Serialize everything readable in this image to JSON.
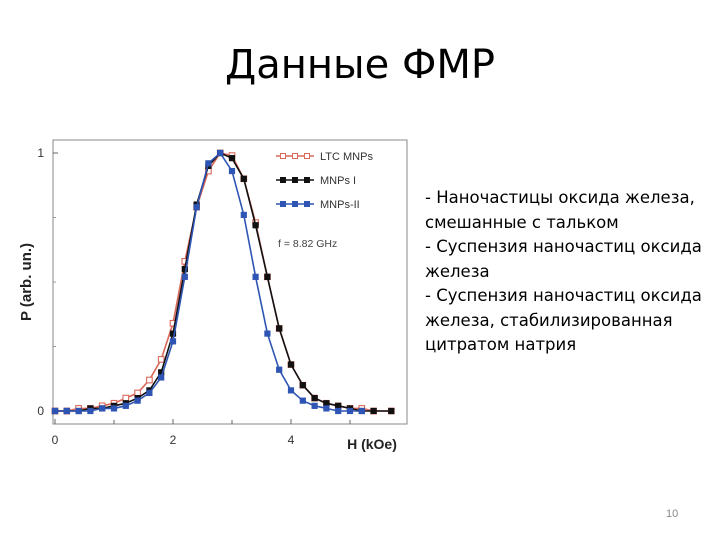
{
  "slide": {
    "title": "Данные ФМР",
    "bullets": [
      "- Наночастицы оксида железа, смешанные с тальком",
      "- Суспензия наночастиц оксида железа",
      "- Суспензия наночастиц оксида железа, стабилизированная цитратом натрия"
    ],
    "page_number": "10"
  },
  "chart_data": {
    "type": "line",
    "title": "",
    "xlabel": "H (kOe)",
    "ylabel": "P (arb. un.)",
    "xlim": [
      0,
      6
    ],
    "ylim": [
      0,
      1
    ],
    "x_ticks": [
      "0",
      "2",
      "4"
    ],
    "y_ticks": [
      "0",
      "1"
    ],
    "annotation": "f = 8.82 GHz",
    "legend_position": "top-right",
    "series": [
      {
        "name": "LTC MNPs",
        "color": "#d9695a",
        "marker": "open-square",
        "points": [
          [
            0,
            0
          ],
          [
            0.2,
            0
          ],
          [
            0.4,
            0.01
          ],
          [
            0.6,
            0.01
          ],
          [
            0.8,
            0.02
          ],
          [
            1.0,
            0.03
          ],
          [
            1.2,
            0.05
          ],
          [
            1.4,
            0.07
          ],
          [
            1.6,
            0.12
          ],
          [
            1.8,
            0.2
          ],
          [
            2.0,
            0.34
          ],
          [
            2.2,
            0.58
          ],
          [
            2.4,
            0.79
          ],
          [
            2.6,
            0.93
          ],
          [
            2.8,
            1.0
          ],
          [
            3.0,
            0.99
          ],
          [
            3.2,
            0.9
          ],
          [
            3.4,
            0.73
          ],
          [
            3.6,
            0.52
          ],
          [
            3.8,
            0.32
          ],
          [
            4.0,
            0.18
          ],
          [
            4.2,
            0.1
          ],
          [
            4.4,
            0.05
          ],
          [
            4.6,
            0.03
          ],
          [
            4.8,
            0.02
          ],
          [
            5.0,
            0.01
          ],
          [
            5.2,
            0.01
          ],
          [
            5.4,
            0.0
          ],
          [
            5.7,
            0.0
          ]
        ]
      },
      {
        "name": "MNPs I",
        "color": "#111111",
        "marker": "filled-square",
        "points": [
          [
            0,
            0
          ],
          [
            0.2,
            0
          ],
          [
            0.4,
            0.0
          ],
          [
            0.6,
            0.01
          ],
          [
            0.8,
            0.01
          ],
          [
            1.0,
            0.02
          ],
          [
            1.2,
            0.03
          ],
          [
            1.4,
            0.05
          ],
          [
            1.6,
            0.08
          ],
          [
            1.8,
            0.15
          ],
          [
            2.0,
            0.3
          ],
          [
            2.2,
            0.55
          ],
          [
            2.4,
            0.8
          ],
          [
            2.6,
            0.95
          ],
          [
            2.8,
            1.0
          ],
          [
            3.0,
            0.98
          ],
          [
            3.2,
            0.9
          ],
          [
            3.4,
            0.72
          ],
          [
            3.6,
            0.52
          ],
          [
            3.8,
            0.32
          ],
          [
            4.0,
            0.18
          ],
          [
            4.2,
            0.1
          ],
          [
            4.4,
            0.05
          ],
          [
            4.6,
            0.03
          ],
          [
            4.8,
            0.02
          ],
          [
            5.0,
            0.01
          ],
          [
            5.2,
            0.0
          ],
          [
            5.4,
            0.0
          ],
          [
            5.7,
            0.0
          ]
        ]
      },
      {
        "name": "MNPs-II",
        "color": "#2f55b4",
        "marker": "filled-square",
        "points": [
          [
            0,
            0
          ],
          [
            0.2,
            0
          ],
          [
            0.4,
            0.0
          ],
          [
            0.6,
            0.0
          ],
          [
            0.8,
            0.01
          ],
          [
            1.0,
            0.01
          ],
          [
            1.2,
            0.02
          ],
          [
            1.4,
            0.04
          ],
          [
            1.6,
            0.07
          ],
          [
            1.8,
            0.13
          ],
          [
            2.0,
            0.27
          ],
          [
            2.2,
            0.52
          ],
          [
            2.4,
            0.79
          ],
          [
            2.6,
            0.96
          ],
          [
            2.8,
            1.0
          ],
          [
            3.0,
            0.93
          ],
          [
            3.2,
            0.76
          ],
          [
            3.4,
            0.52
          ],
          [
            3.6,
            0.3
          ],
          [
            3.8,
            0.16
          ],
          [
            4.0,
            0.08
          ],
          [
            4.2,
            0.04
          ],
          [
            4.4,
            0.02
          ],
          [
            4.6,
            0.01
          ],
          [
            4.8,
            0.0
          ],
          [
            5.0,
            0.0
          ],
          [
            5.2,
            0.0
          ]
        ]
      }
    ]
  }
}
